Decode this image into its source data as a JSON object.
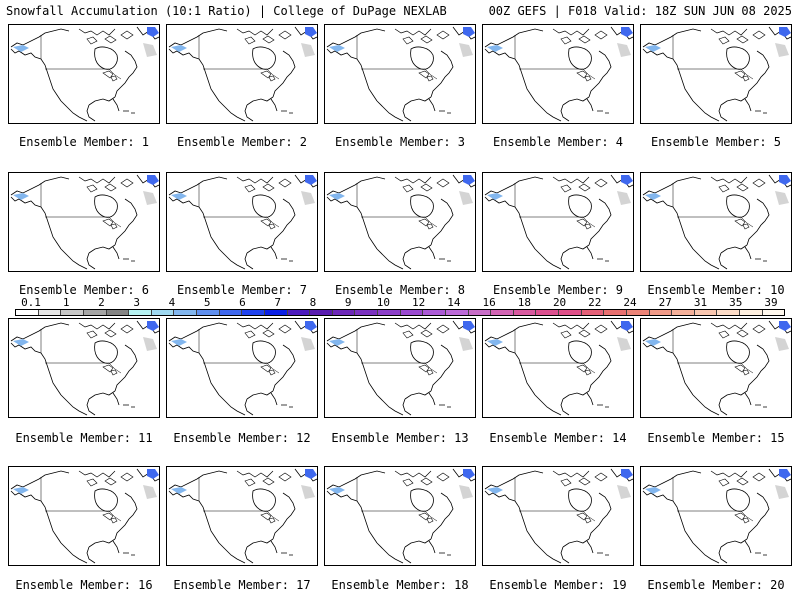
{
  "header": {
    "left": "Snowfall Accumulation (10:1 Ratio) | College of DuPage NEXLAB",
    "right": "00Z GEFS | F018 Valid: 18Z SUN JUN 08 2025"
  },
  "members": [
    {
      "label": "Ensemble Member: 1"
    },
    {
      "label": "Ensemble Member: 2"
    },
    {
      "label": "Ensemble Member: 3"
    },
    {
      "label": "Ensemble Member: 4"
    },
    {
      "label": "Ensemble Member: 5"
    },
    {
      "label": "Ensemble Member: 6"
    },
    {
      "label": "Ensemble Member: 7"
    },
    {
      "label": "Ensemble Member: 8"
    },
    {
      "label": "Ensemble Member: 9"
    },
    {
      "label": "Ensemble Member: 10"
    },
    {
      "label": "Ensemble Member: 11"
    },
    {
      "label": "Ensemble Member: 12"
    },
    {
      "label": "Ensemble Member: 13"
    },
    {
      "label": "Ensemble Member: 14"
    },
    {
      "label": "Ensemble Member: 15"
    },
    {
      "label": "Ensemble Member: 16"
    },
    {
      "label": "Ensemble Member: 17"
    },
    {
      "label": "Ensemble Member: 18"
    },
    {
      "label": "Ensemble Member: 19"
    },
    {
      "label": "Ensemble Member: 20"
    }
  ],
  "colorbar": {
    "labels": [
      "0.1",
      "1",
      "2",
      "3",
      "4",
      "5",
      "6",
      "7",
      "8",
      "9",
      "10",
      "12",
      "14",
      "16",
      "18",
      "20",
      "22",
      "24",
      "27",
      "31",
      "35",
      "39"
    ],
    "colors": [
      "#ffffff",
      "#e6e6e6",
      "#c8c8c8",
      "#a6a6a6",
      "#848484",
      "#b7f3f3",
      "#9fd8f0",
      "#82b6ee",
      "#5f8fee",
      "#3f68ee",
      "#1f42ee",
      "#0a1fe6",
      "#4d1bbd",
      "#5a1db0",
      "#6d28b8",
      "#7b32c0",
      "#8b3ec8",
      "#9a4ad0",
      "#ab5ad6",
      "#bc6ad8",
      "#c86ec8",
      "#d264b4",
      "#d85aa0",
      "#dc5090",
      "#e0508a",
      "#e46078",
      "#e87070",
      "#ec8478",
      "#f09a88",
      "#f4b09a",
      "#f8c6b0",
      "#fcdcc8",
      "#fef0e0",
      "#fff8ee"
    ]
  }
}
